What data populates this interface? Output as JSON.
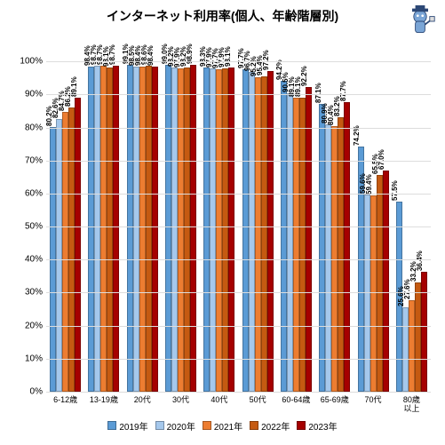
{
  "title": {
    "text": "インターネット利用率(個人、年齢階層別)",
    "fontsize": 14
  },
  "chart": {
    "type": "bar",
    "ylim": [
      0,
      110
    ],
    "ytick_step": 10,
    "ytick_max_visible": 100,
    "y_suffix": "%",
    "background_color": "#ffffff",
    "grid_color": "#dddddd",
    "label_fontsize": 8,
    "axis_fontsize": 10,
    "categories": [
      "6-12歳",
      "13-19歳",
      "20代",
      "30代",
      "40代",
      "50代",
      "60-64歳",
      "65-69歳",
      "70代",
      "80歳\n以上"
    ],
    "series": [
      {
        "name": "2019年",
        "name_suffix": "年",
        "color": "#5b9bd5"
      },
      {
        "name": "2020年",
        "color": "#a5c8ec"
      },
      {
        "name": "2021年",
        "color": "#ed7d31"
      },
      {
        "name": "2022年",
        "color": "#c55a11"
      },
      {
        "name": "2023年",
        "color": "#a50000"
      }
    ],
    "values": [
      [
        80.2,
        82.6,
        84.7,
        86.2,
        89.1
      ],
      [
        98.4,
        98.7,
        98.7,
        98.1,
        98.7
      ],
      [
        99.1,
        98.5,
        98.4,
        98.6,
        98.4
      ],
      [
        99.0,
        98.2,
        97.9,
        98.2,
        98.9
      ],
      [
        98.3,
        97.9,
        97.7,
        97.9,
        98.1
      ],
      [
        97.7,
        96.7,
        95.2,
        95.4,
        97.2
      ],
      [
        94.2,
        90.5,
        89.1,
        89.1,
        92.2
      ],
      [
        87.1,
        80.9,
        80.4,
        83.2,
        87.7
      ],
      [
        74.2,
        59.6,
        59.4,
        65.5,
        67.0
      ],
      [
        57.5,
        25.6,
        27.6,
        33.2,
        36.4
      ]
    ]
  },
  "legend": {
    "swatch_size": 10,
    "fontsize": 10
  }
}
